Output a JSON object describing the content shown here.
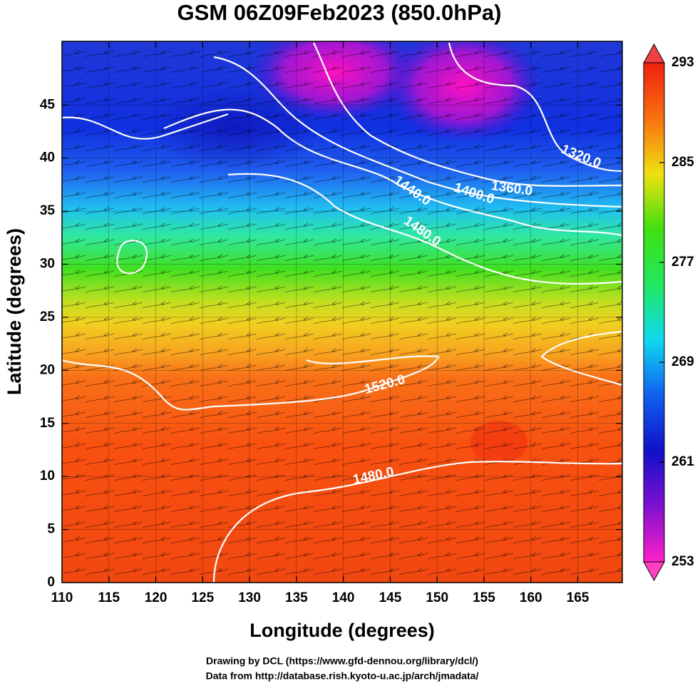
{
  "chart_data": {
    "type": "contour-map",
    "title": "GSM 06Z09Feb2023 (850.0hPa)",
    "xlabel": "Longitude (degrees)",
    "ylabel": "Latitude (degrees)",
    "xlim": [
      110,
      169.75
    ],
    "ylim": [
      0,
      51
    ],
    "xticks": [
      110,
      115,
      120,
      125,
      130,
      135,
      140,
      145,
      150,
      155,
      160,
      165
    ],
    "yticks": [
      0,
      5,
      10,
      15,
      20,
      25,
      30,
      35,
      40,
      45
    ],
    "grid": true,
    "colorbar": {
      "lim": [
        253,
        293
      ],
      "ticks": [
        253,
        261,
        269,
        277,
        285,
        293
      ],
      "colormap": [
        "#ff20c8",
        "#8010d0",
        "#1010c8",
        "#1060f0",
        "#10d8f0",
        "#20e860",
        "#40e010",
        "#f0e010",
        "#f87010",
        "#f02010"
      ]
    },
    "contour_labels": [
      {
        "value": 1320,
        "label": "1320.0"
      },
      {
        "value": 1360,
        "label": "1360.0"
      },
      {
        "value": 1400,
        "label": "1400.0"
      },
      {
        "value": 1440,
        "label": "1440.0"
      },
      {
        "value": 1480,
        "label": "1480.0"
      },
      {
        "value": 1520,
        "label": "1520.0"
      },
      {
        "value": 1480,
        "label": "1480.0"
      }
    ],
    "credits": [
      "Drawing by DCL (https://www.gfd-dennou.org/library/dcl/)",
      "Data from http://database.rish.kyoto-u.ac.jp/arch/jmadata/"
    ]
  }
}
